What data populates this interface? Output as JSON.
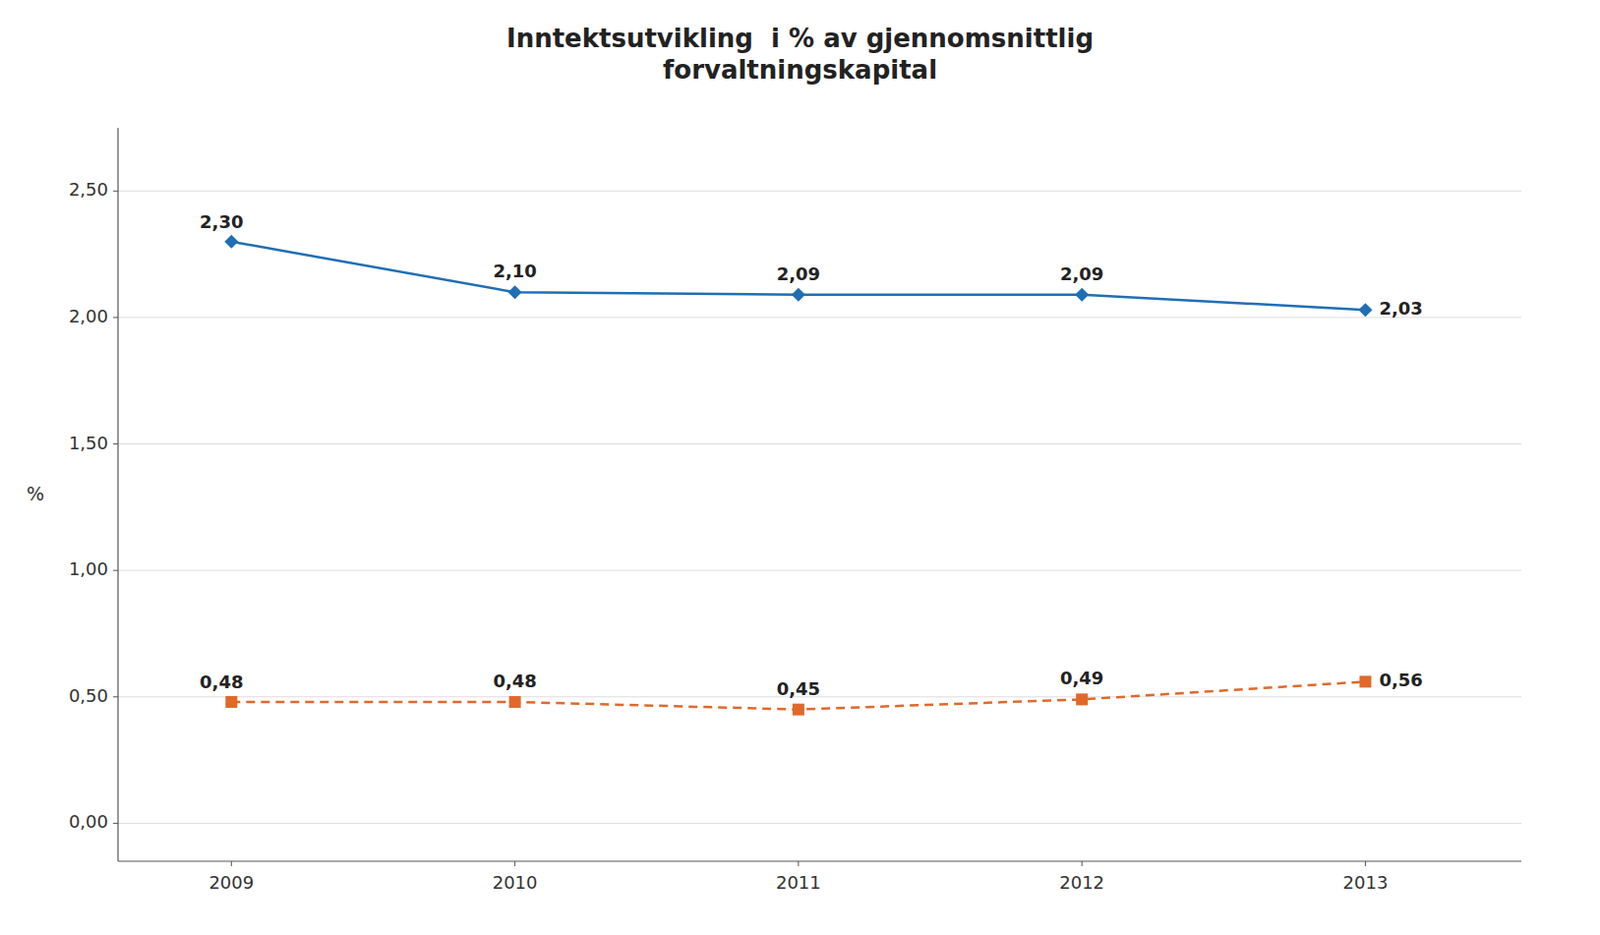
{
  "chart_data": {
    "type": "line",
    "title": "Inntektsutvikling  i % av gjennomsnittlig\nforvaltningskapital",
    "ylabel": "%",
    "x": [
      2009,
      2010,
      2011,
      2012,
      2013
    ],
    "xlim": [
      2008.6,
      2013.55
    ],
    "xticks": [
      2009,
      2010,
      2011,
      2012,
      2013
    ],
    "ylim": [
      -0.15,
      2.75
    ],
    "yticks": [
      {
        "value": 0.0,
        "label": "0,00"
      },
      {
        "value": 0.5,
        "label": "0,50"
      },
      {
        "value": 1.0,
        "label": "1,00"
      },
      {
        "value": 1.5,
        "label": "1,50"
      },
      {
        "value": 2.0,
        "label": "2,00"
      },
      {
        "value": 2.5,
        "label": "2,50"
      }
    ],
    "grid": true,
    "data_labels": true,
    "series": [
      {
        "values": [
          2.3,
          2.1,
          2.09,
          2.09,
          2.03
        ],
        "value_labels": [
          "2,30",
          "2,10",
          "2,09",
          "2,09",
          "2,03"
        ],
        "marker": "diamond",
        "line_style": "solid"
      },
      {
        "values": [
          0.48,
          0.48,
          0.45,
          0.49,
          0.56
        ],
        "value_labels": [
          "0,48",
          "0,48",
          "0,45",
          "0,49",
          "0,56"
        ],
        "marker": "square",
        "line_style": "dashed"
      }
    ]
  }
}
